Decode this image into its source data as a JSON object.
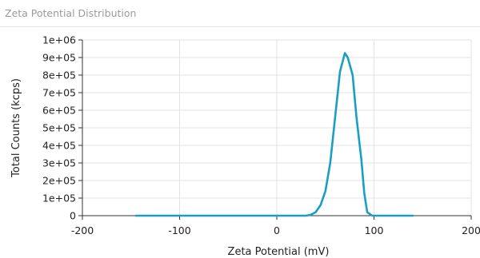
{
  "panel": {
    "title": "Zeta Potential Distribution"
  },
  "chart_data": {
    "type": "line",
    "xlabel": "Zeta Potential (mV)",
    "ylabel": "Total Counts (kcps)",
    "xlim": [
      -200,
      200
    ],
    "ylim": [
      0,
      1000000
    ],
    "x_ticks": [
      -200,
      -100,
      0,
      100,
      200
    ],
    "x_tick_labels": [
      "-200",
      "-100",
      "0",
      "100",
      "200"
    ],
    "y_ticks": [
      0,
      100000,
      200000,
      300000,
      400000,
      500000,
      600000,
      700000,
      800000,
      900000,
      1000000
    ],
    "y_tick_labels": [
      "0",
      "1e+05",
      "2e+05",
      "3e+05",
      "4e+05",
      "5e+05",
      "6e+05",
      "7e+05",
      "8e+05",
      "9e+05",
      "1e+06"
    ],
    "grid": true,
    "series_color": "#1a9fc4",
    "series": [
      {
        "x": [
          -145,
          0,
          30,
          35,
          40,
          45,
          50,
          55,
          60,
          65,
          70,
          73,
          78,
          82,
          87,
          90,
          93,
          98,
          105,
          140
        ],
        "values": [
          0,
          0,
          0,
          5000,
          20000,
          60000,
          140000,
          300000,
          560000,
          820000,
          925000,
          900000,
          800000,
          560000,
          320000,
          130000,
          20000,
          0,
          0,
          0
        ]
      }
    ]
  }
}
